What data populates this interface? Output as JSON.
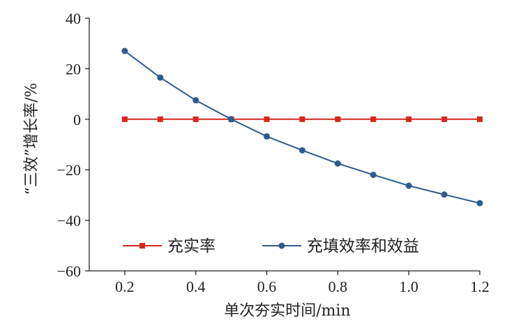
{
  "chart_data": {
    "type": "line",
    "xlabel": "单次夯实时间/min",
    "ylabel": "“三效”增长率/%",
    "x": [
      0.2,
      0.3,
      0.4,
      0.5,
      0.6,
      0.7,
      0.8,
      0.9,
      1.0,
      1.1,
      1.2
    ],
    "xlim": [
      0.1,
      1.2
    ],
    "ylim": [
      -60,
      40
    ],
    "x_ticks": [
      "0.2",
      "0.4",
      "0.6",
      "0.8",
      "1.0",
      "1.2"
    ],
    "y_ticks": [
      "40",
      "20",
      "0",
      "−20",
      "−40",
      "−60"
    ],
    "grid": false,
    "legend_position": "bottom-left inside plot",
    "series": [
      {
        "name": "充实率",
        "color": "#d7261e",
        "marker": "square",
        "values": [
          0,
          0,
          0,
          0,
          0,
          0,
          0,
          0,
          0,
          0,
          0
        ]
      },
      {
        "name": "充填效率和效益",
        "color": "#2f5b8c",
        "marker": "circle",
        "values": [
          27.0,
          16.5,
          7.5,
          0.0,
          -6.8,
          -12.3,
          -17.5,
          -22.0,
          -26.3,
          -29.8,
          -33.2
        ]
      }
    ]
  }
}
